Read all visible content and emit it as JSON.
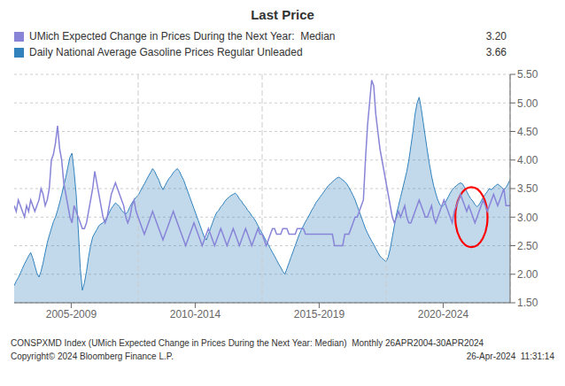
{
  "chart_data": {
    "type": "line",
    "title": "Last Price",
    "x": [
      0,
      1,
      2,
      3,
      4,
      5,
      6,
      7,
      8,
      9,
      10,
      11,
      12,
      13,
      14,
      15,
      16,
      17,
      18,
      19,
      20,
      21,
      22,
      23,
      24,
      25,
      26,
      27,
      28,
      29,
      30,
      31,
      32,
      33,
      34,
      35,
      36,
      37,
      38,
      39,
      40,
      41,
      42,
      43,
      44,
      45,
      46,
      47,
      48,
      49,
      50,
      51,
      52,
      53,
      54,
      55,
      56,
      57,
      58,
      59,
      60,
      61,
      62,
      63,
      64,
      65,
      66,
      67,
      68,
      69,
      70,
      71,
      72,
      73,
      74,
      75,
      76,
      77,
      78,
      79,
      80,
      81,
      82,
      83,
      84,
      85,
      86,
      87,
      88,
      89,
      90,
      91,
      92,
      93,
      94,
      95,
      96,
      97,
      98,
      99,
      100,
      101,
      102,
      103,
      104,
      105,
      106,
      107,
      108,
      109,
      110,
      111,
      112,
      113,
      114,
      115,
      116,
      117,
      118,
      119,
      120,
      121,
      122,
      123,
      124,
      125,
      126,
      127,
      128,
      129,
      130,
      131,
      132,
      133,
      134,
      135,
      136,
      137,
      138,
      139,
      140,
      141,
      142,
      143,
      144,
      145,
      146,
      147,
      148,
      149,
      150,
      151,
      152,
      153,
      154,
      155,
      156,
      157,
      158,
      159,
      160,
      161,
      162,
      163,
      164,
      165,
      166,
      167,
      168,
      169,
      170,
      171,
      172,
      173,
      174,
      175,
      176,
      177,
      178,
      179,
      180,
      181,
      182,
      183,
      184,
      185,
      186,
      187,
      188,
      189,
      190,
      191,
      192,
      193,
      194,
      195,
      196,
      197,
      198,
      199,
      200,
      201,
      202,
      203,
      204,
      205,
      206,
      207,
      208,
      209,
      210,
      211,
      212,
      213,
      214,
      215,
      216,
      217,
      218,
      219,
      220,
      221,
      222,
      223,
      224,
      225,
      226,
      227,
      228,
      229,
      230,
      231,
      232,
      233,
      234,
      235,
      236,
      237,
      238,
      239,
      240
    ],
    "xlim": [
      0,
      240
    ],
    "xticks": [
      {
        "value": 27.6,
        "label": "2005-2009"
      },
      {
        "value": 87.6,
        "label": "2010-2014"
      },
      {
        "value": 147.6,
        "label": "2015-2019"
      },
      {
        "value": 207.6,
        "label": "2020-2024"
      }
    ],
    "ylim": [
      1.5,
      5.5
    ],
    "yticks": [
      {
        "value": 1.5,
        "label": "1.50"
      },
      {
        "value": 2.0,
        "label": "2.00"
      },
      {
        "value": 2.5,
        "label": "2.50"
      },
      {
        "value": 3.0,
        "label": "3.00"
      },
      {
        "value": 3.5,
        "label": "3.50"
      },
      {
        "value": 4.0,
        "label": "4.00"
      },
      {
        "value": 4.5,
        "label": "4.50"
      },
      {
        "value": 5.0,
        "label": "5.00"
      },
      {
        "value": 5.5,
        "label": "5.50"
      }
    ],
    "grid": true,
    "vlines": [
      60,
      120,
      180,
      240
    ],
    "highlight": {
      "x": 221.28,
      "y": 3.0,
      "width": 15.6,
      "height": 1.05,
      "color": "red"
    },
    "annotations": [
      "CONSPXMD Index (UMich Expected Change in Prices During the Next Year: Median)  Monthly 26APR2004-30APR2024",
      "Copyright© 2024 Bloomberg Finance L.P.",
      "26-Apr-2024  11:31:14"
    ],
    "series": [
      {
        "name": "UMich Expected Change in Prices During the Next Year:  Median",
        "type": "line",
        "color": "#8884d8",
        "last_value": {
          "value": 3.2,
          "label": "3.20"
        },
        "values": [
          3.2,
          3.1,
          3.3,
          3.2,
          3.1,
          3.0,
          3.2,
          3.1,
          3.3,
          3.2,
          3.1,
          3.2,
          3.3,
          3.5,
          3.4,
          3.2,
          3.3,
          3.5,
          4.0,
          4.1,
          4.3,
          4.6,
          4.2,
          4.0,
          3.6,
          3.4,
          3.2,
          3.0,
          2.9,
          3.2,
          3.1,
          3.0,
          2.9,
          2.8,
          2.8,
          2.9,
          3.1,
          3.3,
          3.5,
          3.8,
          3.6,
          3.4,
          3.2,
          3.0,
          2.9,
          3.0,
          3.2,
          3.4,
          3.5,
          3.6,
          3.5,
          3.4,
          3.3,
          3.2,
          3.0,
          2.9,
          3.0,
          3.2,
          3.3,
          3.1,
          3.0,
          2.9,
          2.8,
          2.7,
          2.8,
          2.9,
          3.0,
          3.1,
          3.0,
          2.9,
          2.8,
          2.7,
          2.6,
          2.7,
          2.8,
          2.9,
          3.0,
          3.1,
          3.0,
          2.9,
          2.8,
          2.7,
          2.6,
          2.5,
          2.6,
          2.7,
          2.8,
          2.9,
          2.8,
          2.7,
          2.6,
          2.5,
          2.6,
          2.7,
          2.8,
          2.7,
          2.6,
          2.5,
          2.6,
          2.7,
          2.8,
          2.7,
          2.6,
          2.5,
          2.6,
          2.7,
          2.8,
          2.7,
          2.6,
          2.5,
          2.6,
          2.7,
          2.8,
          2.7,
          2.6,
          2.5,
          2.6,
          2.7,
          2.8,
          2.7,
          2.7,
          2.6,
          2.5,
          2.6,
          2.7,
          2.8,
          2.8,
          2.7,
          2.7,
          2.7,
          2.8,
          2.8,
          2.8,
          2.7,
          2.7,
          2.7,
          2.7,
          2.8,
          2.8,
          2.8,
          2.8,
          2.7,
          2.7,
          2.7,
          2.7,
          2.7,
          2.7,
          2.7,
          2.7,
          2.7,
          2.7,
          2.7,
          2.7,
          2.7,
          2.7,
          2.5,
          2.5,
          2.5,
          2.5,
          2.5,
          2.7,
          2.7,
          2.7,
          2.8,
          2.9,
          3.0,
          3.0,
          3.1,
          3.2,
          3.3,
          4.0,
          4.6,
          5.0,
          5.4,
          5.3,
          4.8,
          4.5,
          4.2,
          4.0,
          3.8,
          3.6,
          3.4,
          3.2,
          3.0,
          2.9,
          3.0,
          3.1,
          3.0,
          3.1,
          3.2,
          3.0,
          2.9,
          2.9,
          3.0,
          3.1,
          3.2,
          3.3,
          3.2,
          3.1,
          3.0,
          3.0,
          3.1,
          3.2,
          3.0,
          2.9,
          3.0,
          3.1,
          3.2,
          3.3,
          3.2,
          3.1,
          3.0,
          2.9,
          3.1,
          3.2,
          3.3,
          3.4,
          3.3,
          3.2,
          3.1,
          3.2,
          3.1,
          3.0,
          2.9,
          3.0,
          3.1,
          3.2,
          3.3,
          3.2,
          3.1,
          3.2,
          3.3,
          3.4,
          3.3,
          3.2,
          3.3,
          3.4,
          3.5,
          3.2,
          3.2,
          3.2
        ]
      },
      {
        "name": "Daily National Average Gasoline Prices Regular Unleaded",
        "type": "area",
        "color": "#3182bd",
        "last_value": {
          "value": 3.66,
          "label": "3.66"
        },
        "values": [
          1.8,
          1.88,
          1.94,
          2.02,
          2.1,
          2.18,
          2.25,
          2.32,
          2.38,
          2.28,
          2.15,
          2.02,
          1.95,
          2.05,
          2.2,
          2.38,
          2.55,
          2.68,
          2.8,
          2.92,
          3.0,
          3.12,
          3.25,
          3.4,
          3.55,
          3.7,
          3.88,
          4.05,
          4.12,
          3.8,
          3.4,
          2.8,
          2.1,
          1.72,
          1.85,
          2.05,
          2.3,
          2.5,
          2.65,
          2.72,
          2.78,
          2.85,
          2.88,
          2.9,
          2.95,
          3.0,
          3.08,
          3.15,
          3.2,
          3.25,
          3.22,
          3.18,
          3.12,
          3.08,
          3.05,
          3.1,
          3.18,
          3.25,
          3.3,
          3.35,
          3.38,
          3.45,
          3.52,
          3.58,
          3.65,
          3.72,
          3.78,
          3.85,
          3.8,
          3.72,
          3.65,
          3.55,
          3.48,
          3.55,
          3.62,
          3.68,
          3.72,
          3.78,
          3.82,
          3.85,
          3.8,
          3.72,
          3.65,
          3.55,
          3.45,
          3.35,
          3.25,
          3.15,
          3.05,
          2.95,
          2.85,
          2.75,
          2.65,
          2.6,
          2.7,
          2.8,
          2.9,
          3.0,
          3.08,
          3.12,
          3.18,
          3.22,
          3.28,
          3.32,
          3.35,
          3.38,
          3.4,
          3.42,
          3.38,
          3.32,
          3.28,
          3.22,
          3.18,
          3.12,
          3.08,
          3.02,
          2.98,
          2.92,
          2.85,
          2.78,
          2.72,
          2.65,
          2.58,
          2.52,
          2.45,
          2.38,
          2.32,
          2.25,
          2.18,
          2.12,
          2.05,
          2.0,
          2.1,
          2.2,
          2.3,
          2.4,
          2.5,
          2.6,
          2.7,
          2.78,
          2.85,
          2.92,
          2.98,
          3.05,
          3.12,
          3.18,
          3.25,
          3.3,
          3.35,
          3.4,
          3.45,
          3.5,
          3.55,
          3.58,
          3.62,
          3.65,
          3.68,
          3.7,
          3.68,
          3.65,
          3.62,
          3.58,
          3.52,
          3.45,
          3.38,
          3.3,
          3.2,
          3.1,
          3.0,
          2.9,
          2.8,
          2.72,
          2.65,
          2.58,
          2.52,
          2.45,
          2.38,
          2.32,
          2.28,
          2.25,
          2.22,
          2.3,
          2.45,
          2.65,
          2.85,
          3.05,
          3.2,
          3.35,
          3.5,
          3.65,
          3.8,
          4.0,
          4.25,
          4.5,
          4.8,
          5.0,
          5.1,
          4.9,
          4.65,
          4.4,
          4.15,
          3.92,
          3.72,
          3.55,
          3.42,
          3.3,
          3.22,
          3.18,
          3.22,
          3.28,
          3.35,
          3.42,
          3.48,
          3.52,
          3.55,
          3.58,
          3.6,
          3.58,
          3.52,
          3.45,
          3.38,
          3.32,
          3.28,
          3.22,
          3.18,
          3.22,
          3.28,
          3.35,
          3.4,
          3.45,
          3.5,
          3.48,
          3.52,
          3.55,
          3.58,
          3.55,
          3.52,
          3.48,
          3.52,
          3.58,
          3.66
        ]
      }
    ]
  }
}
